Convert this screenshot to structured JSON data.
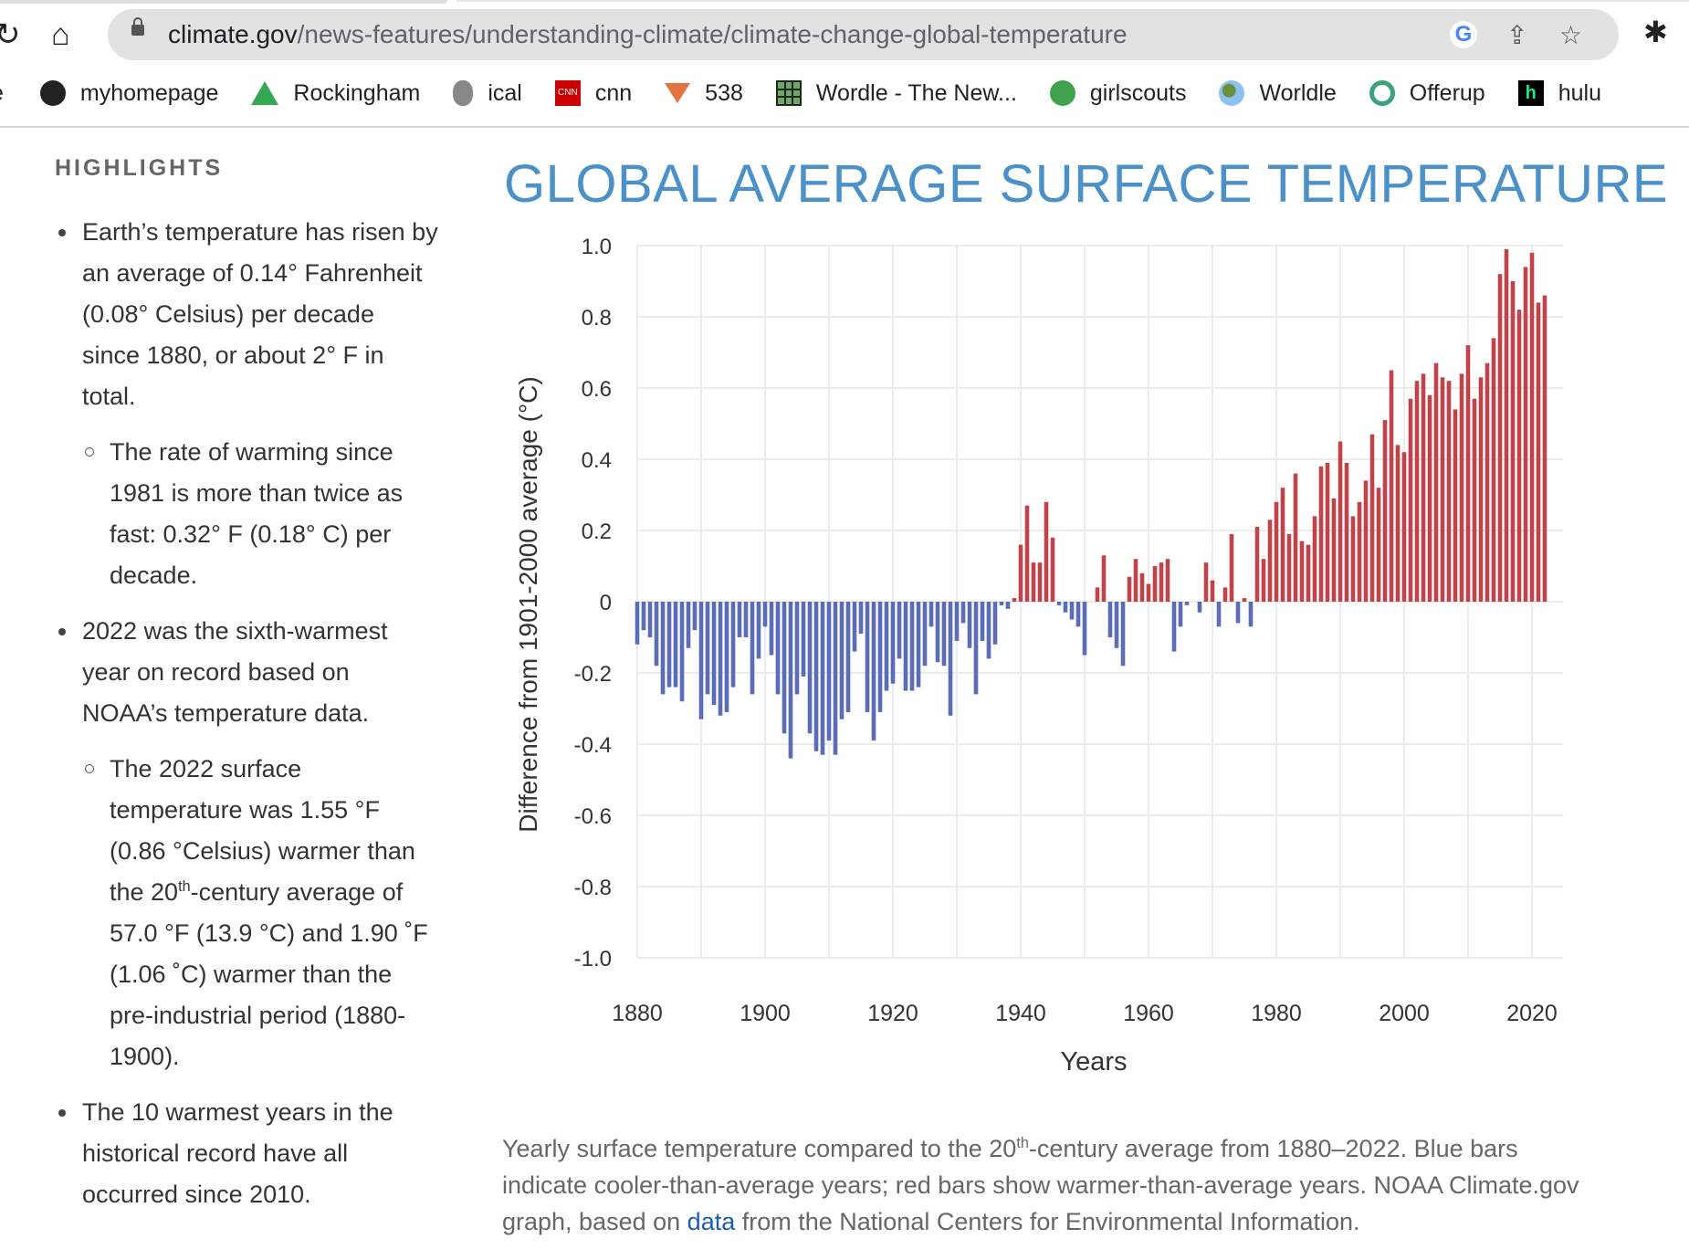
{
  "browser": {
    "url_host": "climate.gov",
    "url_path": "/news-features/understanding-climate/climate-change-global-temperature",
    "bookmarks": [
      {
        "label": "myhomepage",
        "icon": "globe-icon"
      },
      {
        "label": "Rockingham",
        "icon": "google-drive-icon"
      },
      {
        "label": "ical",
        "icon": "apple-icon"
      },
      {
        "label": "cnn",
        "icon": "cnn-icon"
      },
      {
        "label": "538",
        "icon": "fivethirtyeight-icon"
      },
      {
        "label": "Wordle - The New...",
        "icon": "wordle-icon"
      },
      {
        "label": "girlscouts",
        "icon": "girlscouts-icon"
      },
      {
        "label": "Worldle",
        "icon": "earth-icon"
      },
      {
        "label": "Offerup",
        "icon": "offerup-icon"
      },
      {
        "label": "hulu",
        "icon": "hulu-icon"
      }
    ]
  },
  "sidebar": {
    "heading": "HIGHLIGHTS",
    "b1": "Earth’s temperature has risen by an average of 0.14° Fahrenheit (0.08° Celsius) per decade since 1880, or about 2° F in total.",
    "b1_sub": "The rate of warming since 1981 is more than twice as fast: 0.32° F (0.18° C) per decade.",
    "b2": "2022 was the sixth-warmest year on record based on NOAA’s temperature data.",
    "b2_sub_a": "The 2022 surface temperature was 1.55 °F (0.86 °Celsius) warmer than the 20",
    "b2_sub_sup": "th",
    "b2_sub_b": "-century average of 57.0 °F (13.9 °C) and 1.90 ˚F (1.06 ˚C) warmer than the pre-industrial period (1880-1900).",
    "b3": "The 10 warmest years in the historical record have all occurred since 2010."
  },
  "caption": {
    "a": "Yearly surface temperature compared to the 20",
    "sup": "th",
    "b": "-century average from 1880–2022. Blue bars indicate cooler-than-average years; red bars show warmer-than-average years. NOAA Climate.gov graph, based on ",
    "link": "data",
    "c": " from the National Centers for Environmental Information."
  },
  "chart_data": {
    "type": "bar",
    "title": "GLOBAL AVERAGE SURFACE TEMPERATURE",
    "xlabel": "Years",
    "ylabel": "Difference from 1901-2000 average (°C)",
    "xlim": [
      1880,
      2022
    ],
    "ylim": [
      -1.0,
      1.0
    ],
    "grid": true,
    "x_ticks": [
      "1880",
      "1900",
      "1920",
      "1940",
      "1960",
      "1980",
      "2000",
      "2020"
    ],
    "y_ticks": [
      "1.0",
      "0.8",
      "0.6",
      "0.4",
      "0.2",
      "0",
      "-0.2",
      "-0.4",
      "-0.6",
      "-0.8",
      "-1.0"
    ],
    "colors": {
      "positive": "#c0434a",
      "negative": "#5b6db6",
      "title": "#4a90c9"
    },
    "start_year": 1880,
    "values": [
      -0.12,
      -0.08,
      -0.1,
      -0.18,
      -0.26,
      -0.24,
      -0.24,
      -0.28,
      -0.13,
      -0.08,
      -0.33,
      -0.26,
      -0.29,
      -0.32,
      -0.31,
      -0.24,
      -0.1,
      -0.1,
      -0.26,
      -0.16,
      -0.07,
      -0.15,
      -0.26,
      -0.37,
      -0.44,
      -0.26,
      -0.21,
      -0.37,
      -0.42,
      -0.43,
      -0.39,
      -0.43,
      -0.33,
      -0.31,
      -0.14,
      -0.09,
      -0.31,
      -0.39,
      -0.31,
      -0.25,
      -0.23,
      -0.16,
      -0.25,
      -0.25,
      -0.24,
      -0.18,
      -0.07,
      -0.17,
      -0.18,
      -0.32,
      -0.11,
      -0.06,
      -0.13,
      -0.26,
      -0.11,
      -0.16,
      -0.12,
      -0.01,
      -0.02,
      0.01,
      0.16,
      0.27,
      0.11,
      0.11,
      0.28,
      0.18,
      -0.01,
      -0.03,
      -0.05,
      -0.07,
      -0.15,
      0.0,
      0.04,
      0.13,
      -0.1,
      -0.13,
      -0.18,
      0.07,
      0.12,
      0.08,
      0.05,
      0.1,
      0.11,
      0.12,
      -0.14,
      -0.07,
      -0.01,
      0.0,
      -0.03,
      0.11,
      0.06,
      -0.07,
      0.04,
      0.19,
      -0.06,
      0.01,
      -0.07,
      0.21,
      0.12,
      0.23,
      0.28,
      0.32,
      0.19,
      0.36,
      0.17,
      0.16,
      0.24,
      0.38,
      0.39,
      0.29,
      0.45,
      0.39,
      0.24,
      0.28,
      0.34,
      0.47,
      0.32,
      0.51,
      0.65,
      0.44,
      0.42,
      0.57,
      0.62,
      0.64,
      0.58,
      0.67,
      0.63,
      0.62,
      0.54,
      0.64,
      0.72,
      0.57,
      0.63,
      0.67,
      0.74,
      0.92,
      0.99,
      0.9,
      0.82,
      0.94,
      0.98,
      0.84,
      0.86
    ]
  }
}
